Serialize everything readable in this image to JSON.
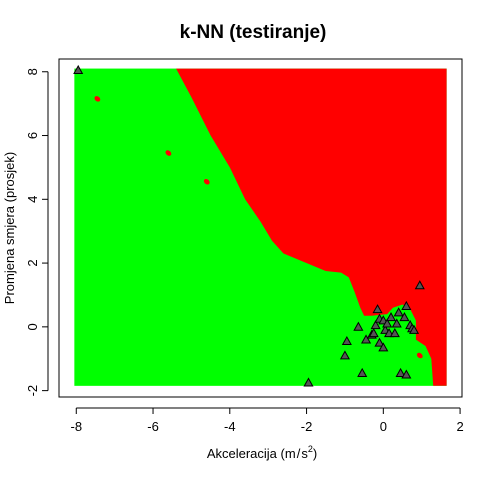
{
  "chart_data": {
    "type": "scatter",
    "title": "k-NN (testiranje)",
    "xlabel": "Akceleracija (m/s²)",
    "xlabel_parts": {
      "main": "Akceleracija (m",
      "slash": "/",
      "unit": "s",
      "sup": "2",
      "close": ")"
    },
    "ylabel": "Promjena smjera (prosjek)",
    "xlim": [
      -8.45,
      2.05
    ],
    "ylim": [
      -2.2,
      8.4
    ],
    "grid": false,
    "x_ticks": [
      -8,
      -6,
      -4,
      -2,
      0,
      2
    ],
    "y_ticks": [
      -2,
      0,
      2,
      4,
      6,
      8
    ],
    "x_tick_labels": [
      "-8",
      "-6",
      "-4",
      "-2",
      "0",
      "2"
    ],
    "y_tick_labels": [
      "-2",
      "0",
      "2",
      "4",
      "6",
      "8"
    ],
    "region_extent": {
      "x": [
        -8.05,
        1.65
      ],
      "y": [
        -1.85,
        8.1
      ]
    },
    "regions": [
      {
        "class": "red",
        "color": "#ff0000",
        "boundary": [
          [
            -5.4,
            8.1
          ],
          [
            -5.0,
            7.2
          ],
          [
            -4.5,
            6.0
          ],
          [
            -4.0,
            5.0
          ],
          [
            -3.6,
            4.0
          ],
          [
            -3.2,
            3.3
          ],
          [
            -2.9,
            2.7
          ],
          [
            -2.6,
            2.3
          ],
          [
            -2.2,
            2.1
          ],
          [
            -1.8,
            1.9
          ],
          [
            -1.5,
            1.75
          ],
          [
            -1.1,
            1.7
          ],
          [
            -0.9,
            1.55
          ],
          [
            -0.75,
            1.1
          ],
          [
            -0.6,
            0.6
          ],
          [
            -0.5,
            0.35
          ],
          [
            -0.3,
            0.35
          ],
          [
            0.1,
            0.4
          ],
          [
            0.25,
            0.6
          ],
          [
            0.5,
            0.7
          ],
          [
            0.7,
            0.55
          ],
          [
            0.85,
            0.2
          ],
          [
            0.85,
            -0.4
          ],
          [
            1.1,
            -0.6
          ],
          [
            1.25,
            -1.0
          ],
          [
            1.3,
            -1.85
          ]
        ]
      },
      {
        "class": "green",
        "color": "#00ff00"
      }
    ],
    "blobs": [
      {
        "color": "#ff0000",
        "x": -7.45,
        "y": 7.15
      },
      {
        "color": "#ff0000",
        "x": -5.6,
        "y": 5.45
      },
      {
        "color": "#ff0000",
        "x": -4.6,
        "y": 4.55
      },
      {
        "color": "#ff0000",
        "x": 0.95,
        "y": -0.9
      }
    ],
    "points": [
      {
        "x": -7.95,
        "y": 8.05
      },
      {
        "x": -1.95,
        "y": -1.75
      },
      {
        "x": 0.95,
        "y": 1.3
      },
      {
        "x": -0.15,
        "y": 0.55
      },
      {
        "x": -0.65,
        "y": 0.0
      },
      {
        "x": -0.95,
        "y": -0.45
      },
      {
        "x": -1.0,
        "y": -0.9
      },
      {
        "x": -0.55,
        "y": -1.45
      },
      {
        "x": -0.45,
        "y": -0.4
      },
      {
        "x": -0.3,
        "y": -0.25
      },
      {
        "x": -0.2,
        "y": 0.05
      },
      {
        "x": -0.1,
        "y": 0.25
      },
      {
        "x": 0.0,
        "y": 0.2
      },
      {
        "x": 0.05,
        "y": -0.1
      },
      {
        "x": 0.1,
        "y": 0.1
      },
      {
        "x": 0.15,
        "y": -0.2
      },
      {
        "x": 0.2,
        "y": 0.3
      },
      {
        "x": 0.3,
        "y": -0.2
      },
      {
        "x": 0.35,
        "y": 0.1
      },
      {
        "x": 0.4,
        "y": 0.45
      },
      {
        "x": 0.6,
        "y": 0.65
      },
      {
        "x": 0.7,
        "y": 0.05
      },
      {
        "x": 0.75,
        "y": -0.05
      },
      {
        "x": -0.1,
        "y": -0.5
      },
      {
        "x": 0.0,
        "y": -0.65
      },
      {
        "x": 0.45,
        "y": -1.45
      },
      {
        "x": 0.6,
        "y": -1.5
      },
      {
        "x": -0.25,
        "y": -0.2
      },
      {
        "x": 0.55,
        "y": 0.3
      },
      {
        "x": 0.8,
        "y": -0.1
      }
    ],
    "colors": {
      "region_red": "#ff0000",
      "region_green": "#00ff00",
      "point_fill": "#555555",
      "point_stroke": "#000000",
      "axis": "#000000",
      "background": "#ffffff"
    }
  }
}
